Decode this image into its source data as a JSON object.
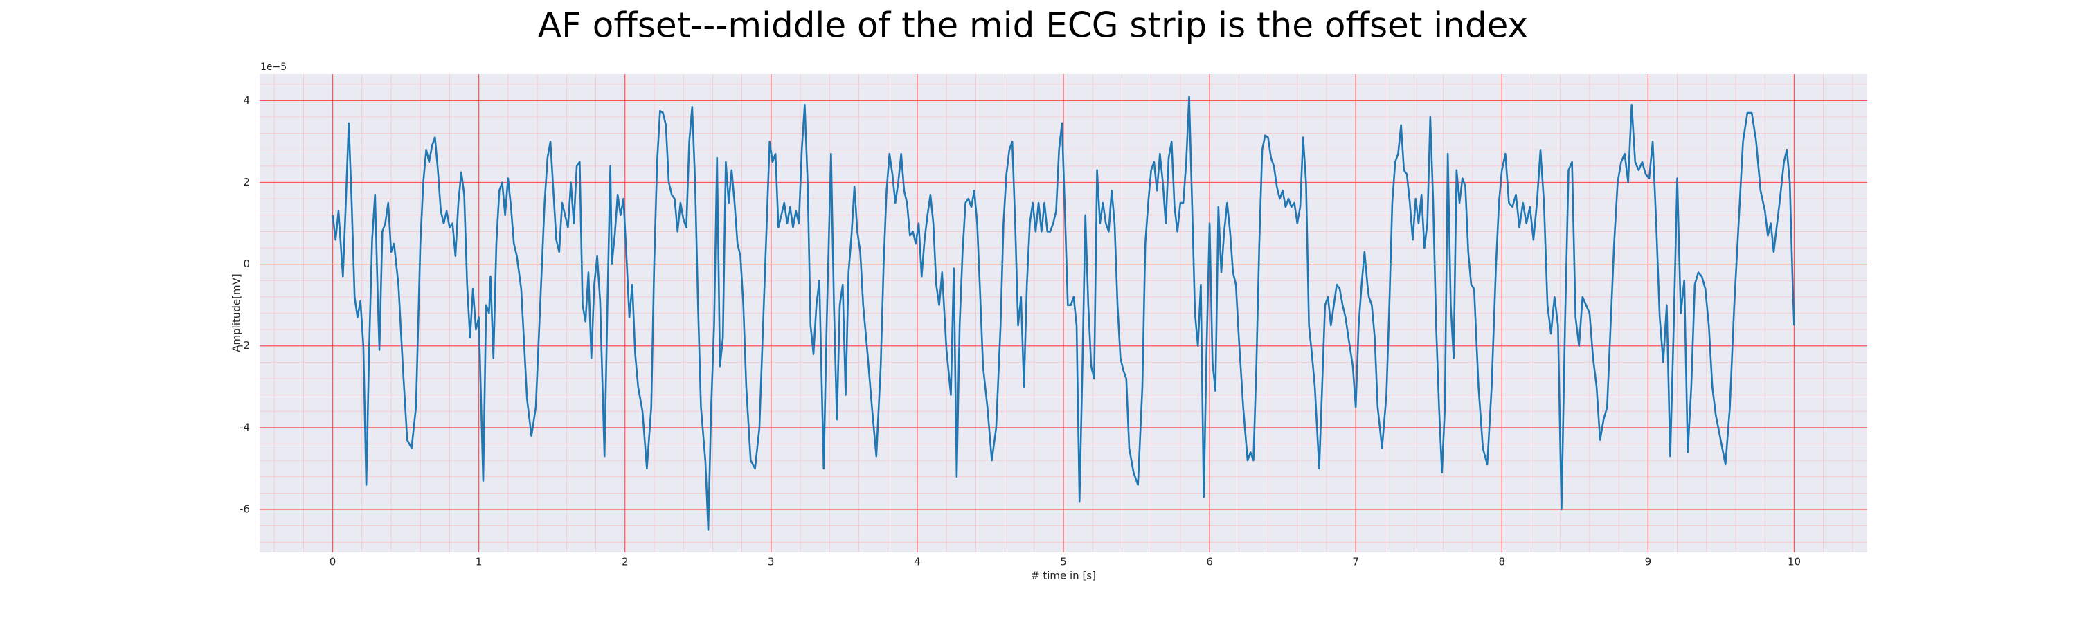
{
  "chart_data": {
    "type": "line",
    "title": "AF offset---middle of the mid ECG strip is the offset index",
    "x_label": "# time in [s]",
    "y_label": "Amplitude[mV]",
    "y_offset_text": "1e−5",
    "xlim": [
      -0.5,
      10.5
    ],
    "xticks": [
      0,
      1,
      2,
      3,
      4,
      5,
      6,
      7,
      8,
      9,
      10
    ],
    "ylim": [
      -7.05,
      4.65
    ],
    "yticks": [
      -6,
      -4,
      -2,
      0,
      2,
      4
    ],
    "grid": true,
    "series": [
      {
        "color": "#1f77b4",
        "x": [
          0,
          0.02,
          0.04,
          0.07,
          0.09,
          0.11,
          0.13,
          0.15,
          0.17,
          0.19,
          0.21,
          0.23,
          0.25,
          0.27,
          0.29,
          0.31,
          0.32,
          0.34,
          0.36,
          0.38,
          0.4,
          0.42,
          0.45,
          0.48,
          0.51,
          0.54,
          0.57,
          0.6,
          0.62,
          0.64,
          0.66,
          0.68,
          0.7,
          0.72,
          0.74,
          0.76,
          0.78,
          0.8,
          0.82,
          0.84,
          0.86,
          0.88,
          0.9,
          0.92,
          0.94,
          0.96,
          0.98,
          1,
          1.03,
          1.05,
          1.07,
          1.08,
          1.1,
          1.12,
          1.14,
          1.16,
          1.18,
          1.2,
          1.22,
          1.24,
          1.26,
          1.29,
          1.33,
          1.36,
          1.39,
          1.42,
          1.45,
          1.47,
          1.49,
          1.51,
          1.53,
          1.55,
          1.57,
          1.59,
          1.61,
          1.63,
          1.65,
          1.67,
          1.69,
          1.71,
          1.73,
          1.75,
          1.77,
          1.79,
          1.81,
          1.83,
          1.86,
          1.88,
          1.9,
          1.91,
          1.93,
          1.95,
          1.97,
          1.99,
          2.01,
          2.03,
          2.05,
          2.07,
          2.09,
          2.12,
          2.15,
          2.18,
          2.2,
          2.22,
          2.24,
          2.26,
          2.28,
          2.3,
          2.32,
          2.34,
          2.36,
          2.38,
          2.4,
          2.42,
          2.44,
          2.46,
          2.48,
          2.5,
          2.52,
          2.55,
          2.57,
          2.59,
          2.61,
          2.63,
          2.65,
          2.67,
          2.69,
          2.71,
          2.73,
          2.75,
          2.77,
          2.79,
          2.81,
          2.83,
          2.86,
          2.89,
          2.92,
          2.95,
          2.97,
          2.99,
          3.01,
          3.03,
          3.05,
          3.07,
          3.09,
          3.11,
          3.13,
          3.15,
          3.17,
          3.19,
          3.21,
          3.23,
          3.25,
          3.27,
          3.29,
          3.31,
          3.33,
          3.36,
          3.38,
          3.41,
          3.43,
          3.45,
          3.47,
          3.49,
          3.51,
          3.53,
          3.55,
          3.57,
          3.59,
          3.61,
          3.63,
          3.66,
          3.69,
          3.72,
          3.75,
          3.77,
          3.79,
          3.81,
          3.83,
          3.85,
          3.87,
          3.89,
          3.91,
          3.93,
          3.95,
          3.97,
          3.99,
          4.01,
          4.03,
          4.05,
          4.07,
          4.09,
          4.11,
          4.13,
          4.15,
          4.17,
          4.2,
          4.23,
          4.25,
          4.27,
          4.29,
          4.31,
          4.33,
          4.35,
          4.37,
          4.39,
          4.41,
          4.43,
          4.45,
          4.48,
          4.51,
          4.54,
          4.57,
          4.59,
          4.61,
          4.63,
          4.65,
          4.67,
          4.69,
          4.71,
          4.73,
          4.75,
          4.77,
          4.79,
          4.81,
          4.83,
          4.85,
          4.87,
          4.89,
          4.91,
          4.93,
          4.95,
          4.97,
          4.99,
          5.01,
          5.03,
          5.05,
          5.07,
          5.09,
          5.11,
          5.13,
          5.15,
          5.17,
          5.19,
          5.21,
          5.23,
          5.25,
          5.27,
          5.29,
          5.31,
          5.33,
          5.35,
          5.37,
          5.39,
          5.41,
          5.43,
          5.45,
          5.48,
          5.51,
          5.54,
          5.56,
          5.58,
          5.6,
          5.62,
          5.64,
          5.66,
          5.68,
          5.7,
          5.72,
          5.74,
          5.76,
          5.78,
          5.8,
          5.82,
          5.84,
          5.86,
          5.88,
          5.9,
          5.92,
          5.94,
          5.96,
          5.98,
          6,
          6.02,
          6.04,
          6.06,
          6.08,
          6.1,
          6.12,
          6.14,
          6.16,
          6.18,
          6.2,
          6.23,
          6.26,
          6.28,
          6.3,
          6.32,
          6.34,
          6.36,
          6.38,
          6.4,
          6.42,
          6.44,
          6.46,
          6.48,
          6.5,
          6.52,
          6.54,
          6.56,
          6.58,
          6.6,
          6.62,
          6.64,
          6.66,
          6.68,
          6.7,
          6.72,
          6.75,
          6.77,
          6.79,
          6.81,
          6.83,
          6.85,
          6.87,
          6.89,
          6.91,
          6.93,
          6.95,
          6.98,
          7,
          7.02,
          7.04,
          7.06,
          7.08,
          7.09,
          7.11,
          7.13,
          7.15,
          7.18,
          7.21,
          7.23,
          7.25,
          7.27,
          7.29,
          7.31,
          7.33,
          7.35,
          7.37,
          7.39,
          7.41,
          7.43,
          7.45,
          7.47,
          7.49,
          7.51,
          7.53,
          7.55,
          7.57,
          7.59,
          7.61,
          7.63,
          7.65,
          7.67,
          7.69,
          7.71,
          7.73,
          7.75,
          7.77,
          7.79,
          7.81,
          7.84,
          7.87,
          7.9,
          7.93,
          7.96,
          7.98,
          8,
          8.024,
          8.048,
          8.072,
          8.096,
          8.12,
          8.144,
          8.168,
          8.192,
          8.216,
          8.24,
          8.264,
          8.288,
          8.312,
          8.336,
          8.36,
          8.384,
          8.408,
          8.432,
          8.456,
          8.48,
          8.504,
          8.528,
          8.552,
          8.576,
          8.6,
          8.624,
          8.648,
          8.672,
          8.696,
          8.72,
          8.744,
          8.768,
          8.792,
          8.816,
          8.84,
          8.864,
          8.888,
          8.912,
          8.936,
          8.96,
          8.984,
          9.008,
          9.032,
          9.056,
          9.08,
          9.104,
          9.128,
          9.152,
          9.176,
          9.2,
          9.224,
          9.248,
          9.272,
          9.296,
          9.32,
          9.344,
          9.368,
          9.392,
          9.416,
          9.44,
          9.464,
          9.53,
          9.56,
          9.59,
          9.62,
          9.65,
          9.68,
          9.71,
          9.74,
          9.77,
          9.8,
          9.82,
          9.84,
          9.86,
          9.88,
          9.9,
          9.93,
          9.95,
          9.97,
          9.99,
          10
        ],
        "values": [
          1.2,
          0.6,
          1.3,
          -0.3,
          1.5,
          3.45,
          1.5,
          -0.8,
          -1.3,
          -0.9,
          -2.0,
          -5.4,
          -2.0,
          0.6,
          1.7,
          -1.0,
          -2.1,
          0.8,
          1.0,
          1.5,
          0.3,
          0.5,
          -0.5,
          -2.5,
          -4.3,
          -4.5,
          -3.5,
          0.5,
          2.0,
          2.8,
          2.5,
          2.9,
          3.1,
          2.3,
          1.3,
          1.0,
          1.3,
          0.9,
          1.0,
          0.2,
          1.5,
          2.25,
          1.7,
          -0.5,
          -1.8,
          -0.6,
          -1.6,
          -1.3,
          -5.3,
          -1.0,
          -1.2,
          -0.3,
          -2.3,
          0.5,
          1.8,
          2.0,
          1.2,
          2.1,
          1.4,
          0.5,
          0.2,
          -0.6,
          -3.3,
          -4.2,
          -3.5,
          -1.0,
          1.5,
          2.6,
          3.0,
          1.8,
          0.6,
          0.3,
          1.5,
          1.2,
          0.9,
          2.0,
          1.0,
          2.4,
          2.5,
          -1.0,
          -1.4,
          -0.2,
          -2.3,
          -0.5,
          0.2,
          -0.9,
          -4.7,
          -1.0,
          2.4,
          0.0,
          0.7,
          1.7,
          1.2,
          1.6,
          0.2,
          -1.3,
          -0.5,
          -2.2,
          -3.0,
          -3.6,
          -5.0,
          -3.5,
          0.0,
          2.5,
          3.75,
          3.7,
          3.4,
          2.0,
          1.7,
          1.6,
          0.8,
          1.5,
          1.1,
          0.9,
          3.0,
          3.85,
          2.0,
          -1.0,
          -3.5,
          -4.8,
          -6.5,
          -3.5,
          -1.5,
          2.6,
          -2.5,
          -1.8,
          2.5,
          1.5,
          2.3,
          1.5,
          0.5,
          0.2,
          -1.0,
          -3.0,
          -4.8,
          -5.0,
          -4.0,
          -1.0,
          1.0,
          3.0,
          2.5,
          2.7,
          0.9,
          1.2,
          1.5,
          1.0,
          1.4,
          0.9,
          1.3,
          1.0,
          2.8,
          3.9,
          2.0,
          -1.5,
          -2.2,
          -1.0,
          -0.4,
          -5.0,
          -1.5,
          2.7,
          -1.0,
          -3.8,
          -1.0,
          -0.5,
          -3.2,
          -0.2,
          0.7,
          1.9,
          0.8,
          0.3,
          -1.0,
          -2.2,
          -3.5,
          -4.7,
          -2.5,
          0.0,
          1.8,
          2.7,
          2.2,
          1.5,
          2.0,
          2.7,
          1.8,
          1.5,
          0.7,
          0.8,
          0.5,
          1.0,
          -0.3,
          0.6,
          1.2,
          1.7,
          1.0,
          -0.5,
          -1.0,
          -0.2,
          -2.1,
          -3.2,
          -0.1,
          -5.2,
          -1.5,
          0.3,
          1.5,
          1.6,
          1.4,
          1.8,
          1.0,
          -0.7,
          -2.5,
          -3.5,
          -4.8,
          -4.0,
          -1.5,
          1.0,
          2.2,
          2.8,
          3.0,
          1.0,
          -1.5,
          -0.8,
          -3.0,
          -0.5,
          1.0,
          1.5,
          0.8,
          1.5,
          0.8,
          1.5,
          0.8,
          0.8,
          1.0,
          1.3,
          2.8,
          3.45,
          1.3,
          -1.0,
          -1.0,
          -0.8,
          -1.5,
          -5.8,
          -2.5,
          1.2,
          -1.0,
          -2.5,
          -2.8,
          2.3,
          1.0,
          1.5,
          1.0,
          0.8,
          1.8,
          1.0,
          -1.0,
          -2.3,
          -2.6,
          -2.8,
          -4.5,
          -5.1,
          -5.4,
          -3.0,
          0.5,
          1.5,
          2.3,
          2.5,
          1.8,
          2.7,
          2.0,
          1.0,
          2.6,
          3.0,
          1.4,
          0.8,
          1.5,
          1.5,
          2.5,
          4.1,
          1.5,
          -1.2,
          -2.0,
          -0.5,
          -5.7,
          -2.0,
          1.0,
          -2.4,
          -3.1,
          1.4,
          -0.2,
          0.8,
          1.5,
          0.8,
          -0.2,
          -0.5,
          -1.8,
          -3.5,
          -4.8,
          -4.6,
          -4.8,
          -2.5,
          0.5,
          2.8,
          3.15,
          3.1,
          2.6,
          2.4,
          1.9,
          1.6,
          1.8,
          1.4,
          1.6,
          1.4,
          1.5,
          1.0,
          1.4,
          3.1,
          2.0,
          -1.5,
          -2.2,
          -3.0,
          -5.0,
          -3.0,
          -1.0,
          -0.8,
          -1.5,
          -1.0,
          -0.5,
          -0.6,
          -1.0,
          -1.3,
          -1.8,
          -2.5,
          -3.5,
          -1.5,
          -0.5,
          0.3,
          -0.5,
          -0.8,
          -1.0,
          -1.8,
          -3.5,
          -4.5,
          -3.2,
          -1.0,
          1.5,
          2.5,
          2.7,
          3.4,
          2.3,
          2.2,
          1.5,
          0.6,
          1.6,
          1.0,
          1.7,
          0.4,
          1.0,
          3.6,
          1.5,
          -1.5,
          -3.5,
          -5.1,
          -3.5,
          2.7,
          -1.0,
          -2.3,
          2.3,
          1.5,
          2.1,
          1.9,
          0.3,
          -0.5,
          -0.6,
          -3.0,
          -4.5,
          -4.9,
          -3.0,
          0.0,
          1.5,
          2.3,
          2.7,
          1.5,
          1.4,
          1.7,
          0.9,
          1.5,
          1.0,
          1.4,
          0.6,
          1.5,
          2.8,
          1.5,
          -1.0,
          -1.7,
          -0.8,
          -1.5,
          -6.0,
          -1.5,
          2.3,
          2.5,
          -1.3,
          -2.0,
          -0.8,
          -1.0,
          -1.2,
          -2.3,
          -3.0,
          -4.3,
          -3.8,
          -3.5,
          -1.5,
          0.5,
          2.0,
          2.5,
          2.7,
          2.0,
          3.9,
          2.5,
          2.3,
          2.5,
          2.2,
          2.1,
          3.0,
          1.0,
          -1.3,
          -2.4,
          -1.0,
          -4.7,
          -1.5,
          2.1,
          -1.2,
          -0.4,
          -4.6,
          -3.0,
          -0.5,
          -0.2,
          -0.3,
          -0.6,
          -1.5,
          -3.0,
          -3.7,
          -4.9,
          -3.5,
          -1.0,
          1.0,
          3.0,
          3.7,
          3.7,
          3.0,
          1.8,
          1.3,
          0.7,
          1.0,
          0.3,
          0.9,
          1.5,
          2.5,
          2.8,
          2.0,
          -0.5,
          -1.5
        ]
      }
    ]
  }
}
